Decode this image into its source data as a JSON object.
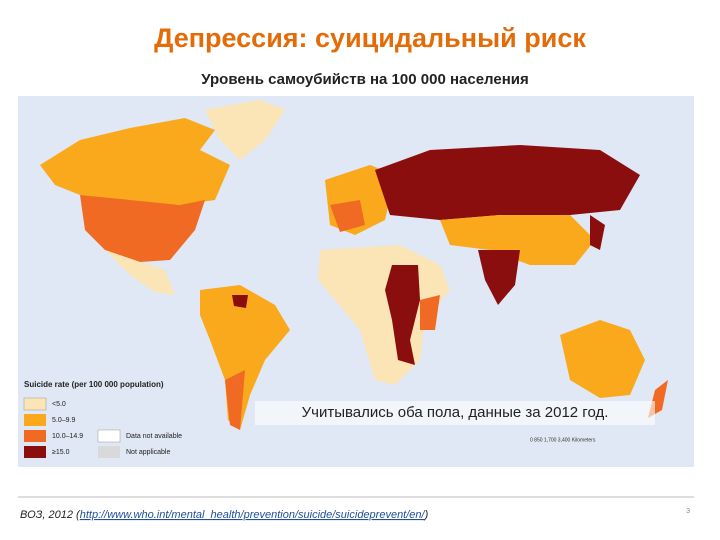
{
  "header": {
    "title": "Депрессия: суицидальный риск",
    "subtitle": "Уровень самоубийств на 100 000 населения"
  },
  "legend": {
    "title": "Suicide rate (per 100 000 population)",
    "items": [
      "<5.0",
      "5.0–9.9",
      "10.0–14.9",
      "≥15.0",
      "Data not available",
      "Not applicable"
    ]
  },
  "map": {
    "note": "Учитывались оба пола, данные за 2012 год.",
    "scale": "0   850  1,700        3,400 Kilometers"
  },
  "footer": {
    "source_prefix": "ВОЗ, 2012 (",
    "source_link": "http://www.who.int/mental_health/prevention/suicide/suicideprevent/en/",
    "source_suffix": ")",
    "page": "3"
  }
}
